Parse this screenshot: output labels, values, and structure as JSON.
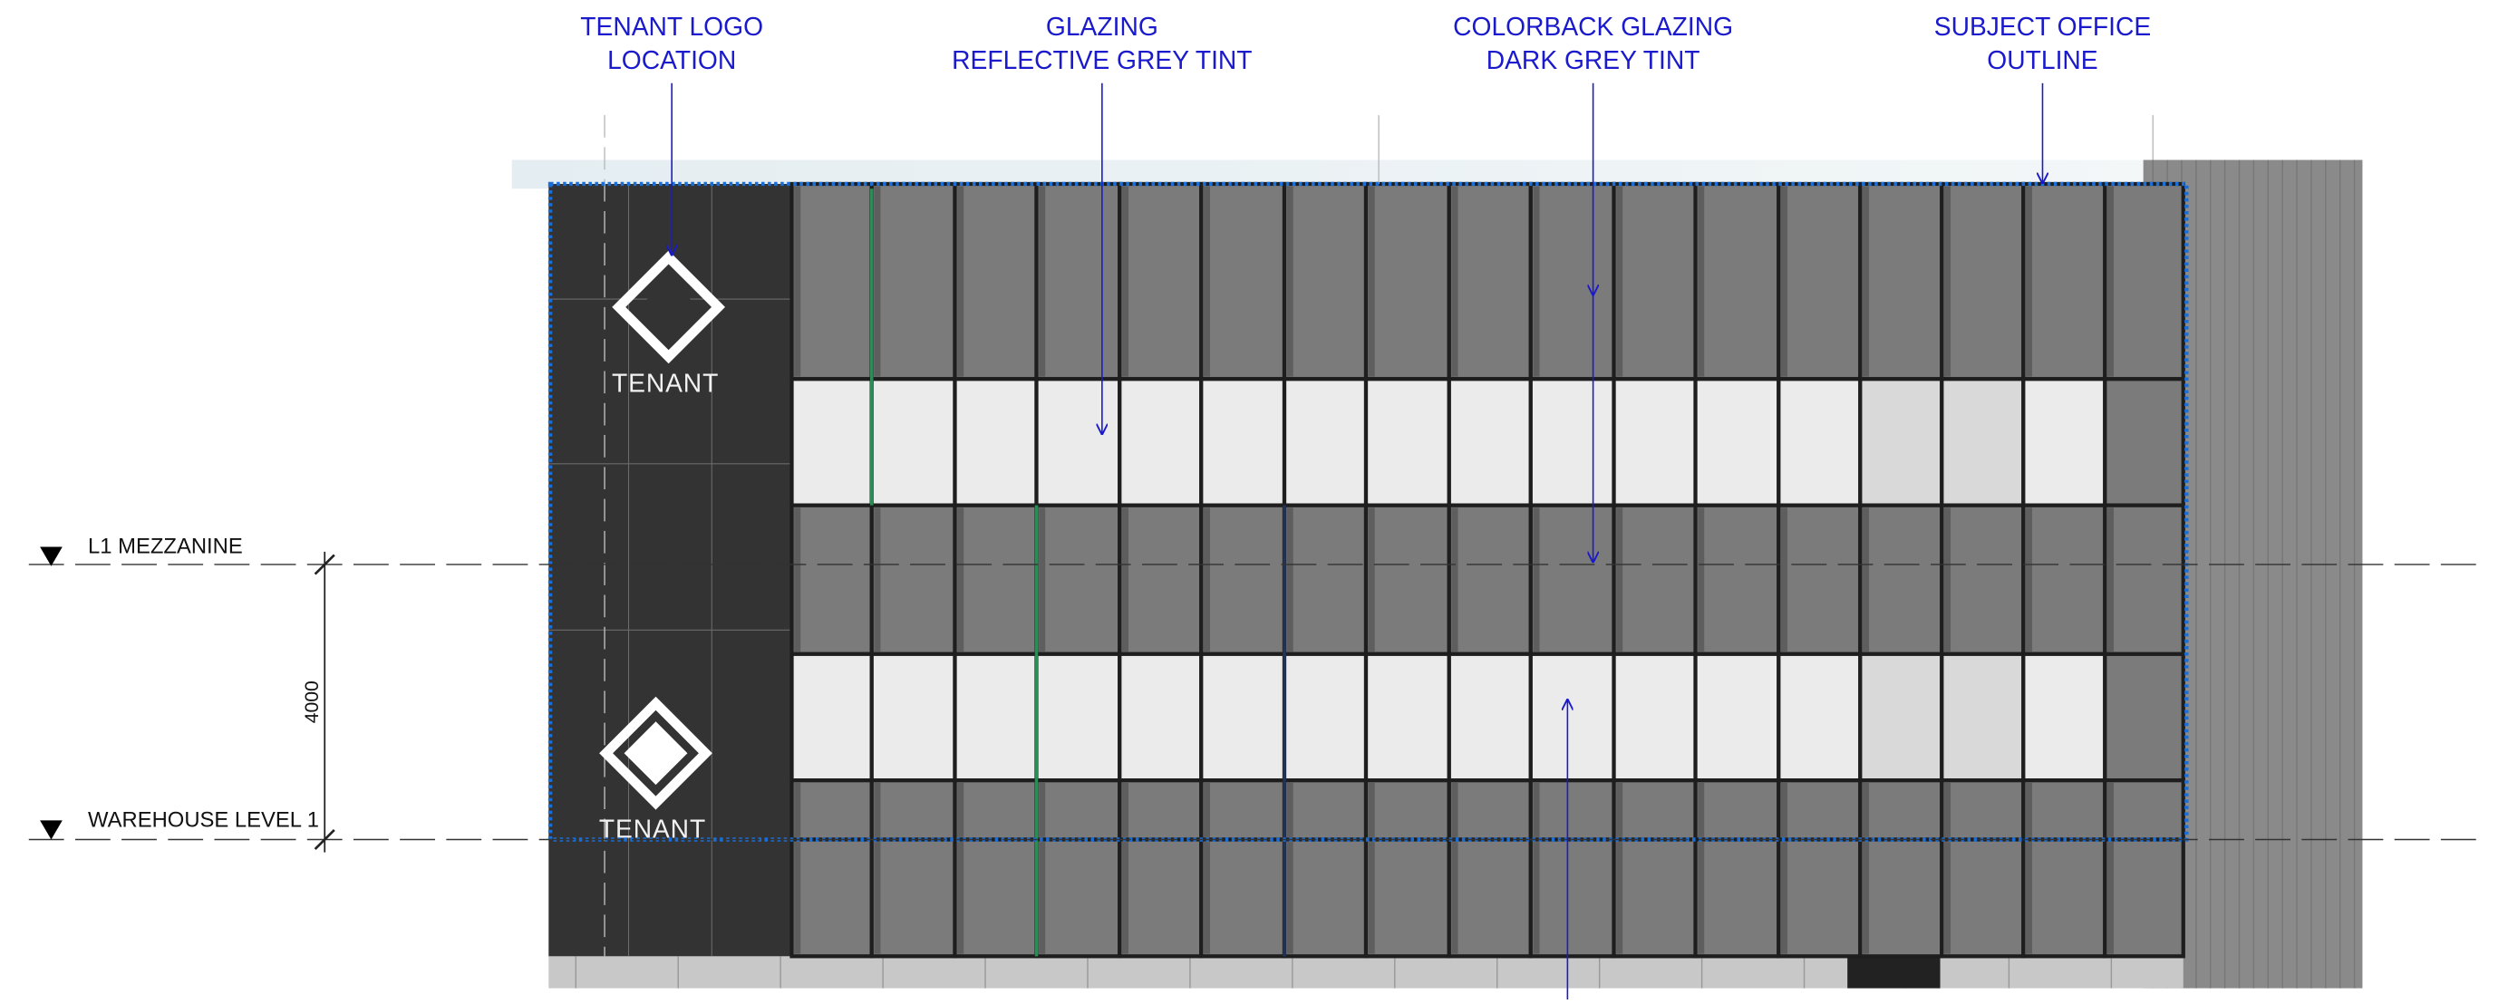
{
  "annotations": [
    {
      "lines": [
        "TENANT LOGO",
        "LOCATION"
      ]
    },
    {
      "lines": [
        "GLAZING",
        "REFLECTIVE GREY TINT"
      ]
    },
    {
      "lines": [
        "COLORBACK GLAZING",
        "DARK GREY TINT"
      ]
    },
    {
      "lines": [
        "SUBJECT OFFICE",
        "OUTLINE"
      ]
    }
  ],
  "levels": [
    {
      "label": "L1 MEZZANINE"
    },
    {
      "label": "WAREHOUSE LEVEL 1"
    }
  ],
  "dimension": {
    "label": "4000"
  },
  "logos": [
    {
      "text": "TENANT"
    },
    {
      "text": "TENANT"
    }
  ]
}
